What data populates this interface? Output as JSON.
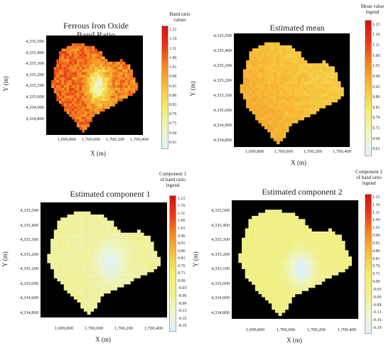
{
  "chart_data": [
    {
      "type": "heatmap",
      "title": "Ferrous Iron Oxide Band Ratio",
      "title_lines": [
        "Ferrous Iron Oxide",
        "Band Ratio"
      ],
      "xlabel": "X (m)",
      "ylabel": "Y (m)",
      "x_ticks": [
        "1,699,800",
        "1,700,000",
        "1,700,200",
        "1,700,400"
      ],
      "y_ticks": [
        "4,335,500",
        "4,335,400",
        "4,335,300",
        "4,335,200",
        "4,335,100",
        "4,335,000",
        "4,334,900",
        "4,334,800"
      ],
      "legend_title_lines": [
        "Band ratio",
        "values"
      ],
      "legend_ticks": [
        "1.21",
        "1.16",
        "1.11",
        "1.06",
        "1.01",
        "0.96",
        "0.91",
        "0.86",
        "0.81",
        "0.76",
        "0.71",
        "0.66",
        "0.61"
      ],
      "colorscale": [
        "#e0f0ff",
        "#f0f6c0",
        "#f4ee6a",
        "#f7c23a",
        "#f58a22",
        "#e83a16",
        "#d81010"
      ],
      "value_range": [
        0.61,
        1.21
      ]
    },
    {
      "type": "heatmap",
      "title": "Estimated mean",
      "title_lines": [
        "Estimated mean"
      ],
      "xlabel": "X (m)",
      "ylabel": "Y (m)",
      "x_ticks": [
        "1,699,800",
        "1,700,000",
        "1,700,200",
        "1,700,400"
      ],
      "y_ticks": [
        "4,335,500",
        "4,335,400",
        "4,335,300",
        "4,335,200",
        "4,335,100",
        "4,335,000",
        "4,334,900",
        "4,334,800"
      ],
      "legend_title_lines": [
        "Mean value",
        "legend"
      ],
      "legend_ticks": [
        "1.21",
        "1.16",
        "1.11",
        "1.06",
        "1.01",
        "0.96",
        "0.91",
        "0.86",
        "0.81",
        "0.76",
        "0.71",
        "0.66",
        "0.61"
      ],
      "colorscale": [
        "#e0f0ff",
        "#f0f6c0",
        "#f4ee6a",
        "#f7c23a",
        "#f58a22",
        "#e83a16",
        "#d81010"
      ],
      "value_range": [
        0.61,
        1.21
      ]
    },
    {
      "type": "heatmap",
      "title": "Estimated component 1",
      "title_lines": [
        "Estimated component 1"
      ],
      "xlabel": "X (m)",
      "ylabel": "Y (m)",
      "x_ticks": [
        "1,699,800",
        "1,700,000",
        "1,700,200",
        "1,700,400"
      ],
      "y_ticks": [
        "4,335,500",
        "4,335,400",
        "4,335,300",
        "4,335,200",
        "4,335,100",
        "4,335,000",
        "4,334,900",
        "4,334,800"
      ],
      "legend_title_lines": [
        "Component 1",
        "of band ratio",
        "legend"
      ],
      "legend_ticks": [
        "1.21",
        "1.16",
        "1.11",
        "1.06",
        "1.01",
        "0.96",
        "0.91",
        "0.86",
        "0.81",
        "0.76",
        "0.71",
        "0.00",
        "-0.03",
        "-0.06",
        "-0.09",
        "-0.13",
        "-0.16",
        "-0.19"
      ],
      "colorscale": [
        "#e0f0ff",
        "#eef6c8",
        "#f0f08a",
        "#f4ee6a",
        "#f7c23a",
        "#f58a22",
        "#e83a16",
        "#d81010"
      ],
      "value_range": [
        -0.19,
        1.21
      ]
    },
    {
      "type": "heatmap",
      "title": "Estimated component 2",
      "title_lines": [
        "Estimated component 2"
      ],
      "xlabel": "X (m)",
      "ylabel": "Y (m)",
      "x_ticks": [
        "1,699,800",
        "1,700,000",
        "1,700,200",
        "1,700,400"
      ],
      "y_ticks": [
        "4,335,500",
        "4,335,400",
        "4,335,300",
        "4,335,200",
        "4,335,100",
        "4,335,000",
        "4,334,900",
        "4,334,800"
      ],
      "legend_title_lines": [
        "Component 2",
        "of band ratio",
        "legend"
      ],
      "legend_ticks": [
        "1.21",
        "1.16",
        "1.11",
        "1.06",
        "1.01",
        "0.96",
        "0.91",
        "0.86",
        "0.81",
        "0.76",
        "0.71",
        "0.00",
        "-0.03",
        "-0.06",
        "-0.09",
        "-0.13",
        "-0.16",
        "-0.19"
      ],
      "colorscale": [
        "#e0f0ff",
        "#eef6c8",
        "#f0f08a",
        "#f4ee6a",
        "#f7c23a",
        "#f58a22",
        "#e83a16",
        "#d81010"
      ],
      "value_range": [
        -0.19,
        1.21
      ]
    }
  ]
}
